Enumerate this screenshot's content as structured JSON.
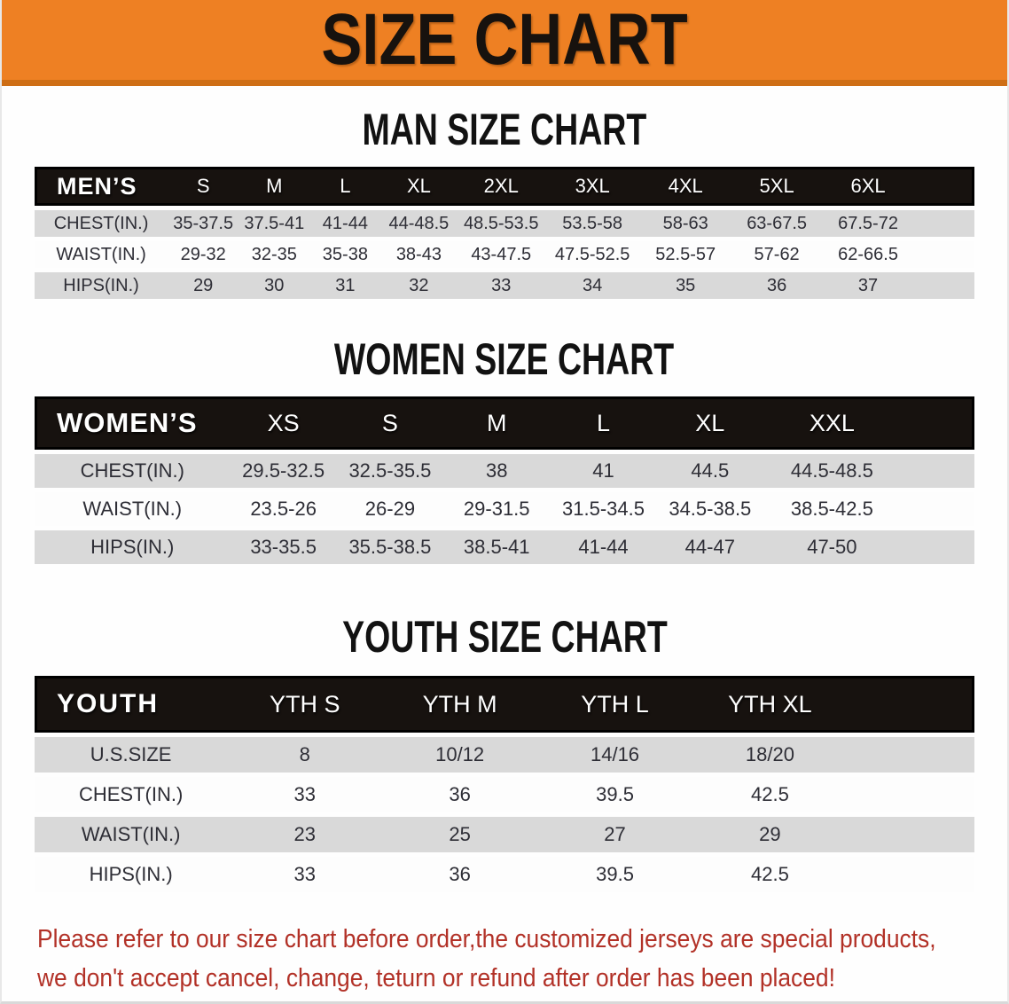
{
  "banner": {
    "title": "SIZE CHART",
    "bg_color": "#EE8023",
    "edge_color": "#CE6E15"
  },
  "colors": {
    "header_bar": "#17120F",
    "row_stripe": "#D9D9D9",
    "disclaimer_text": "#B23127"
  },
  "sections": {
    "men": {
      "heading": "MAN SIZE CHART",
      "table": {
        "corner_label": "MEN’S",
        "columns": [
          "S",
          "M",
          "L",
          "XL",
          "2XL",
          "3XL",
          "4XL",
          "5XL",
          "6XL"
        ],
        "rows": [
          {
            "label": "CHEST(IN.)",
            "values": [
              "35-37.5",
              "37.5-41",
              "41-44",
              "44-48.5",
              "48.5-53.5",
              "53.5-58",
              "58-63",
              "63-67.5",
              "67.5-72"
            ]
          },
          {
            "label": "WAIST(IN.)",
            "values": [
              "29-32",
              "32-35",
              "35-38",
              "38-43",
              "43-47.5",
              "47.5-52.5",
              "52.5-57",
              "57-62",
              "62-66.5"
            ]
          },
          {
            "label": "HIPS(IN.)",
            "values": [
              "29",
              "30",
              "31",
              "32",
              "33",
              "34",
              "35",
              "36",
              "37"
            ]
          }
        ]
      }
    },
    "women": {
      "heading": "WOMEN SIZE CHART",
      "table": {
        "corner_label": "WOMEN’S",
        "columns": [
          "XS",
          "S",
          "M",
          "L",
          "XL",
          "XXL"
        ],
        "rows": [
          {
            "label": "CHEST(IN.)",
            "values": [
              "29.5-32.5",
              "32.5-35.5",
              "38",
              "41",
              "44.5",
              "44.5-48.5"
            ]
          },
          {
            "label": "WAIST(IN.)",
            "values": [
              "23.5-26",
              "26-29",
              "29-31.5",
              "31.5-34.5",
              "34.5-38.5",
              "38.5-42.5"
            ]
          },
          {
            "label": "HIPS(IN.)",
            "values": [
              "33-35.5",
              "35.5-38.5",
              "38.5-41",
              "41-44",
              "44-47",
              "47-50"
            ]
          }
        ]
      }
    },
    "youth": {
      "heading": "YOUTH SIZE CHART",
      "table": {
        "corner_label": "YOUTH",
        "columns": [
          "YTH S",
          "YTH M",
          "YTH L",
          "YTH XL"
        ],
        "rows": [
          {
            "label": "U.S.SIZE",
            "values": [
              "8",
              "10/12",
              "14/16",
              "18/20"
            ]
          },
          {
            "label": "CHEST(IN.)",
            "values": [
              "33",
              "36",
              "39.5",
              "42.5"
            ]
          },
          {
            "label": "WAIST(IN.)",
            "values": [
              "23",
              "25",
              "27",
              "29"
            ]
          },
          {
            "label": "HIPS(IN.)",
            "values": [
              "33",
              "36",
              "39.5",
              "42.5"
            ]
          }
        ]
      }
    }
  },
  "disclaimer": {
    "line1": "Please refer to our size chart before order,the customized jerseys are special products,",
    "line2": "we don't accept cancel, change, teturn or refund after order has been placed!"
  }
}
